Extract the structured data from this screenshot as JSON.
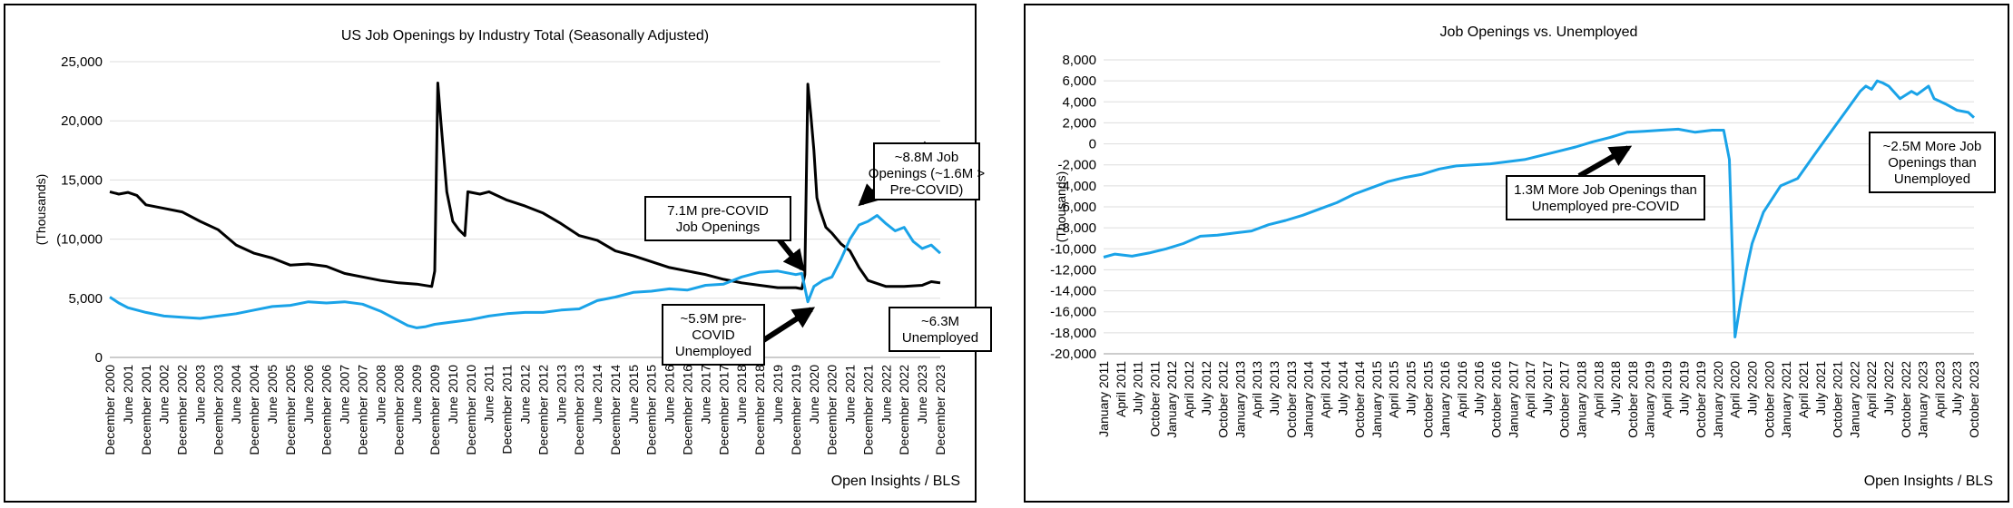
{
  "source_label": "Open Insights / BLS",
  "colors": {
    "openings": "#1aa3e8",
    "unemployed": "#000000",
    "grid": "#dddddd"
  },
  "chart_data": [
    {
      "type": "line",
      "title": "US Job Openings by Industry Total (Seasonally Adjusted)",
      "ylabel": "(Thousands)",
      "ylim": [
        0,
        25000
      ],
      "yticks": [
        0,
        5000,
        10000,
        15000,
        20000,
        25000
      ],
      "ytick_labels": [
        "0",
        "5,000",
        "(10,000",
        "15,000",
        "20,000",
        "25,000"
      ],
      "x_start": "2000-12",
      "x_end": "2023-12",
      "xtick_labels": [
        "December 2000",
        "June 2001",
        "December 2001",
        "June 2002",
        "December 2002",
        "June 2003",
        "December 2003",
        "June 2004",
        "December 2004",
        "June 2005",
        "December 2005",
        "June 2006",
        "December 2006",
        "June 2007",
        "December 2007",
        "June 2008",
        "December 2008",
        "June 2009",
        "December 2009",
        "June 2010",
        "December 2010",
        "June 2011",
        "December 2011",
        "June 2012",
        "December 2012",
        "June 2013",
        "December 2013",
        "June 2014",
        "December 2014",
        "June 2015",
        "December 2015",
        "June 2016",
        "December 2016",
        "June 2017",
        "December 2017",
        "June 2018",
        "December 2018",
        "June 2019",
        "December 2019",
        "June 2020",
        "December 2020",
        "June 2021",
        "December 2021",
        "June 2022",
        "December 2022",
        "June 2023",
        "December 2023"
      ],
      "series": [
        {
          "key": "unemployed",
          "points": [
            [
              "2000-12",
              14000
            ],
            [
              "2001-03",
              13800
            ],
            [
              "2001-06",
              13950
            ],
            [
              "2001-09",
              13700
            ],
            [
              "2001-12",
              12900
            ],
            [
              "2002-06",
              12600
            ],
            [
              "2002-12",
              12300
            ],
            [
              "2003-06",
              11500
            ],
            [
              "2003-12",
              10800
            ],
            [
              "2004-06",
              9500
            ],
            [
              "2004-12",
              8800
            ],
            [
              "2005-06",
              8400
            ],
            [
              "2005-12",
              7800
            ],
            [
              "2006-06",
              7900
            ],
            [
              "2006-12",
              7700
            ],
            [
              "2007-06",
              7100
            ],
            [
              "2007-12",
              6800
            ],
            [
              "2008-06",
              6500
            ],
            [
              "2008-12",
              6300
            ],
            [
              "2009-06",
              6200
            ],
            [
              "2009-11",
              6000
            ],
            [
              "2009-12",
              7300
            ],
            [
              "2010-01",
              23200
            ],
            [
              "2010-02",
              20000
            ],
            [
              "2010-03",
              17000
            ],
            [
              "2010-04",
              14000
            ],
            [
              "2010-06",
              11500
            ],
            [
              "2010-08",
              10800
            ],
            [
              "2010-10",
              10300
            ],
            [
              "2010-11",
              14000
            ],
            [
              "2011-03",
              13800
            ],
            [
              "2011-06",
              14000
            ],
            [
              "2011-12",
              13300
            ],
            [
              "2012-06",
              12800
            ],
            [
              "2012-12",
              12200
            ],
            [
              "2013-06",
              11300
            ],
            [
              "2013-12",
              10300
            ],
            [
              "2014-06",
              9900
            ],
            [
              "2014-12",
              9000
            ],
            [
              "2015-06",
              8600
            ],
            [
              "2015-12",
              8100
            ],
            [
              "2016-06",
              7600
            ],
            [
              "2016-12",
              7300
            ],
            [
              "2017-06",
              7000
            ],
            [
              "2017-12",
              6600
            ],
            [
              "2018-06",
              6300
            ],
            [
              "2018-12",
              6100
            ],
            [
              "2019-06",
              5900
            ],
            [
              "2019-12",
              5900
            ],
            [
              "2020-02",
              5800
            ],
            [
              "2020-03",
              7000
            ],
            [
              "2020-04",
              23100
            ],
            [
              "2020-05",
              20500
            ],
            [
              "2020-06",
              17500
            ],
            [
              "2020-07",
              13500
            ],
            [
              "2020-08",
              12500
            ],
            [
              "2020-10",
              11000
            ],
            [
              "2020-12",
              10500
            ],
            [
              "2021-03",
              9600
            ],
            [
              "2021-06",
              9000
            ],
            [
              "2021-09",
              7600
            ],
            [
              "2021-12",
              6500
            ],
            [
              "2022-06",
              6000
            ],
            [
              "2022-12",
              6000
            ],
            [
              "2023-06",
              6100
            ],
            [
              "2023-09",
              6400
            ],
            [
              "2023-12",
              6300
            ]
          ]
        },
        {
          "key": "openings",
          "points": [
            [
              "2000-12",
              5100
            ],
            [
              "2001-03",
              4600
            ],
            [
              "2001-06",
              4200
            ],
            [
              "2001-12",
              3800
            ],
            [
              "2002-06",
              3500
            ],
            [
              "2002-12",
              3400
            ],
            [
              "2003-06",
              3300
            ],
            [
              "2003-12",
              3500
            ],
            [
              "2004-06",
              3700
            ],
            [
              "2004-12",
              4000
            ],
            [
              "2005-06",
              4300
            ],
            [
              "2005-12",
              4400
            ],
            [
              "2006-06",
              4700
            ],
            [
              "2006-12",
              4600
            ],
            [
              "2007-06",
              4700
            ],
            [
              "2007-12",
              4500
            ],
            [
              "2008-06",
              3900
            ],
            [
              "2008-12",
              3100
            ],
            [
              "2009-03",
              2700
            ],
            [
              "2009-06",
              2500
            ],
            [
              "2009-09",
              2600
            ],
            [
              "2009-12",
              2800
            ],
            [
              "2010-06",
              3000
            ],
            [
              "2010-12",
              3200
            ],
            [
              "2011-06",
              3500
            ],
            [
              "2011-12",
              3700
            ],
            [
              "2012-06",
              3800
            ],
            [
              "2012-12",
              3800
            ],
            [
              "2013-06",
              4000
            ],
            [
              "2013-12",
              4100
            ],
            [
              "2014-06",
              4800
            ],
            [
              "2014-12",
              5100
            ],
            [
              "2015-06",
              5500
            ],
            [
              "2015-12",
              5600
            ],
            [
              "2016-06",
              5800
            ],
            [
              "2016-12",
              5700
            ],
            [
              "2017-06",
              6100
            ],
            [
              "2017-12",
              6200
            ],
            [
              "2018-06",
              6800
            ],
            [
              "2018-12",
              7200
            ],
            [
              "2019-06",
              7300
            ],
            [
              "2019-12",
              7000
            ],
            [
              "2020-02",
              7100
            ],
            [
              "2020-04",
              4700
            ],
            [
              "2020-06",
              6000
            ],
            [
              "2020-09",
              6500
            ],
            [
              "2020-12",
              6800
            ],
            [
              "2021-03",
              8300
            ],
            [
              "2021-06",
              10000
            ],
            [
              "2021-09",
              11200
            ],
            [
              "2021-12",
              11500
            ],
            [
              "2022-03",
              12000
            ],
            [
              "2022-06",
              11300
            ],
            [
              "2022-09",
              10700
            ],
            [
              "2022-12",
              11000
            ],
            [
              "2023-03",
              9800
            ],
            [
              "2023-06",
              9200
            ],
            [
              "2023-09",
              9500
            ],
            [
              "2023-12",
              8800
            ]
          ]
        }
      ],
      "annotations": [
        {
          "text": [
            "~8.8M Job",
            "Openings (~1.6M >",
            "Pre-COVID)"
          ]
        },
        {
          "text": [
            "7.1M pre-COVID",
            "Job Openings"
          ]
        },
        {
          "text": [
            "~5.9M pre-",
            "COVID",
            "Unemployed"
          ]
        },
        {
          "text": [
            "~6.3M",
            "Unemployed"
          ]
        }
      ]
    },
    {
      "type": "line",
      "title": "Job Openings vs. Unemployed",
      "ylabel": "(Thousands)",
      "ylim": [
        -20000,
        8000
      ],
      "yticks": [
        -20000,
        -18000,
        -16000,
        -14000,
        -12000,
        -10000,
        -8000,
        -6000,
        -4000,
        -2000,
        0,
        2000,
        4000,
        6000,
        8000
      ],
      "ytick_labels": [
        "-20,000",
        "-18,000",
        "-16,000",
        "-14,000",
        "-12,000",
        "-10,000",
        "-8,000",
        "-6,000",
        "-4,000",
        "-2,000",
        "0",
        "2,000",
        "4,000",
        "6,000",
        "8,000"
      ],
      "x_start": "2011-01",
      "x_end": "2023-10",
      "xtick_labels": [
        "January 2011",
        "April 2011",
        "July 2011",
        "October 2011",
        "January 2012",
        "April 2012",
        "July 2012",
        "October 2012",
        "January 2013",
        "April 2013",
        "July 2013",
        "October 2013",
        "January 2014",
        "April 2014",
        "July 2014",
        "October 2014",
        "January 2015",
        "April 2015",
        "July 2015",
        "October 2015",
        "January 2016",
        "April 2016",
        "July 2016",
        "October 2016",
        "January 2017",
        "April 2017",
        "July 2017",
        "October 2017",
        "January 2018",
        "April 2018",
        "July 2018",
        "October 2018",
        "January 2019",
        "April 2019",
        "July 2019",
        "October 2019",
        "January 2020",
        "April 2020",
        "July 2020",
        "October 2020",
        "January 2021",
        "April 2021",
        "July 2021",
        "October 2021",
        "January 2022",
        "April 2022",
        "July 2022",
        "October 2022",
        "January 2023",
        "April 2023",
        "July 2023",
        "October 2023"
      ],
      "series": [
        {
          "key": "openings",
          "points": [
            [
              "2011-01",
              -10800
            ],
            [
              "2011-03",
              -10500
            ],
            [
              "2011-06",
              -10700
            ],
            [
              "2011-09",
              -10400
            ],
            [
              "2011-12",
              -10000
            ],
            [
              "2012-03",
              -9500
            ],
            [
              "2012-06",
              -8800
            ],
            [
              "2012-09",
              -8700
            ],
            [
              "2012-12",
              -8500
            ],
            [
              "2013-03",
              -8300
            ],
            [
              "2013-06",
              -7700
            ],
            [
              "2013-09",
              -7300
            ],
            [
              "2013-12",
              -6800
            ],
            [
              "2014-03",
              -6200
            ],
            [
              "2014-06",
              -5600
            ],
            [
              "2014-09",
              -4800
            ],
            [
              "2014-12",
              -4200
            ],
            [
              "2015-03",
              -3600
            ],
            [
              "2015-06",
              -3200
            ],
            [
              "2015-09",
              -2900
            ],
            [
              "2015-12",
              -2400
            ],
            [
              "2016-03",
              -2100
            ],
            [
              "2016-06",
              -2000
            ],
            [
              "2016-09",
              -1900
            ],
            [
              "2016-12",
              -1700
            ],
            [
              "2017-03",
              -1500
            ],
            [
              "2017-06",
              -1100
            ],
            [
              "2017-09",
              -700
            ],
            [
              "2017-12",
              -300
            ],
            [
              "2018-03",
              200
            ],
            [
              "2018-06",
              600
            ],
            [
              "2018-09",
              1100
            ],
            [
              "2018-12",
              1200
            ],
            [
              "2019-03",
              1300
            ],
            [
              "2019-06",
              1400
            ],
            [
              "2019-09",
              1100
            ],
            [
              "2019-12",
              1300
            ],
            [
              "2020-02",
              1300
            ],
            [
              "2020-03",
              -1500
            ],
            [
              "2020-04",
              -18400
            ],
            [
              "2020-05",
              -15000
            ],
            [
              "2020-06",
              -12000
            ],
            [
              "2020-07",
              -9500
            ],
            [
              "2020-09",
              -6500
            ],
            [
              "2020-12",
              -4000
            ],
            [
              "2021-03",
              -3300
            ],
            [
              "2021-06",
              -1000
            ],
            [
              "2021-08",
              500
            ],
            [
              "2021-10",
              2000
            ],
            [
              "2021-12",
              3500
            ],
            [
              "2022-02",
              5000
            ],
            [
              "2022-03",
              5500
            ],
            [
              "2022-04",
              5200
            ],
            [
              "2022-05",
              6000
            ],
            [
              "2022-06",
              5800
            ],
            [
              "2022-07",
              5500
            ],
            [
              "2022-09",
              4300
            ],
            [
              "2022-11",
              5000
            ],
            [
              "2022-12",
              4700
            ],
            [
              "2023-02",
              5500
            ],
            [
              "2023-03",
              4300
            ],
            [
              "2023-05",
              3800
            ],
            [
              "2023-07",
              3200
            ],
            [
              "2023-09",
              3000
            ],
            [
              "2023-10",
              2500
            ]
          ]
        }
      ],
      "annotations": [
        {
          "text": [
            "1.3M More Job Openings than",
            "Unemployed pre-COVID"
          ]
        },
        {
          "text": [
            "~2.5M More Job",
            "Openings than",
            "Unemployed"
          ]
        }
      ]
    }
  ]
}
